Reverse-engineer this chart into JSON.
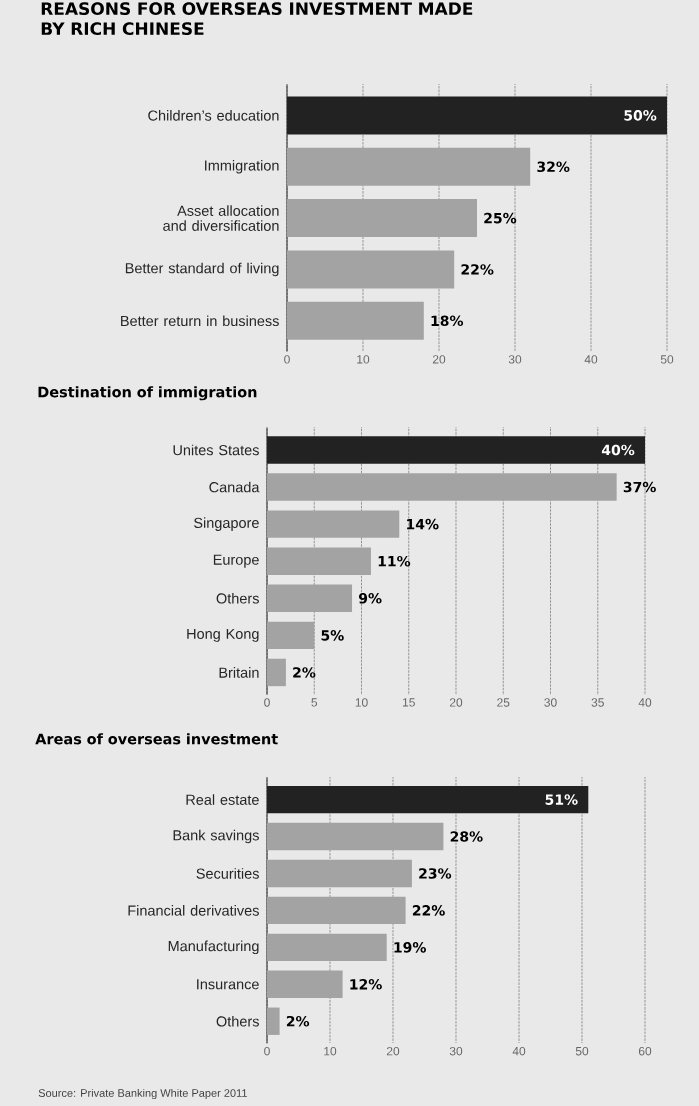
{
  "chart_data": [
    {
      "type": "bar",
      "orientation": "horizontal",
      "title": "REASONS FOR OVERSEAS INVESTMENT MADE BY RICH CHINESE",
      "categories": [
        "Children’s education",
        "Immigration",
        "Asset allocation and diversification",
        "Better standard of living",
        "Better return in business"
      ],
      "values": [
        50,
        32,
        25,
        22,
        18
      ],
      "colors": [
        "#222222",
        "#a3a3a3",
        "#a3a3a3",
        "#a3a3a3",
        "#a3a3a3"
      ],
      "value_labels": [
        "50%",
        "32%",
        "25%",
        "22%",
        "18%"
      ],
      "xlim": [
        0,
        50
      ],
      "xticks": [
        0,
        10,
        20,
        30,
        40,
        50
      ],
      "grid": "x"
    },
    {
      "type": "bar",
      "orientation": "horizontal",
      "title": "Destination of immigration",
      "categories": [
        "Unites States",
        "Canada",
        "Singapore",
        "Europe",
        "Others",
        "Hong Kong",
        "Britain"
      ],
      "values": [
        40,
        37,
        14,
        11,
        9,
        5,
        2
      ],
      "colors": [
        "#222222",
        "#a3a3a3",
        "#a3a3a3",
        "#a3a3a3",
        "#a3a3a3",
        "#a3a3a3",
        "#a3a3a3"
      ],
      "value_labels": [
        "40%",
        "37%",
        "14%",
        "11%",
        "9%",
        "5%",
        "2%"
      ],
      "xlim": [
        0,
        40
      ],
      "xticks": [
        0,
        5,
        10,
        15,
        20,
        25,
        30,
        35,
        40
      ],
      "grid": "x"
    },
    {
      "type": "bar",
      "orientation": "horizontal",
      "title": "Areas of overseas investment",
      "categories": [
        "Real estate",
        "Bank savings",
        "Securities",
        "Financial derivatives",
        "Manufacturing",
        "Insurance",
        "Others"
      ],
      "values": [
        51,
        28,
        23,
        22,
        19,
        12,
        2
      ],
      "colors": [
        "#222222",
        "#a3a3a3",
        "#a3a3a3",
        "#a3a3a3",
        "#a3a3a3",
        "#a3a3a3",
        "#a3a3a3"
      ],
      "value_labels": [
        "51%",
        "28%",
        "23%",
        "22%",
        "19%",
        "12%",
        "2%"
      ],
      "xlim": [
        0,
        60
      ],
      "xticks": [
        0,
        10,
        20,
        30,
        40,
        50,
        60
      ],
      "grid": "x",
      "annotations": [
        "Source: Private Banking White Paper 2011"
      ]
    }
  ]
}
